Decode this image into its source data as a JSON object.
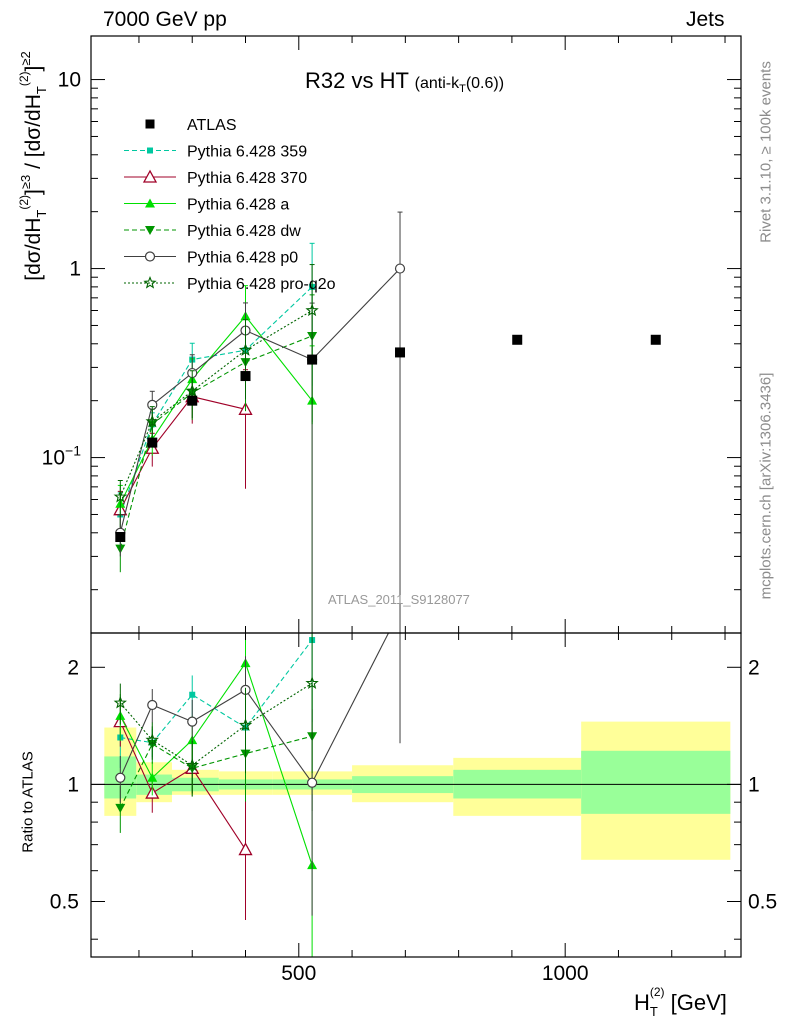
{
  "header": {
    "energy_label": "7000 GeV pp",
    "topic_label": "Jets"
  },
  "plot": {
    "title_main": "R32 vs HT",
    "title_sub": "(anti-k",
    "title_sub_index": "T",
    "title_sub_tail": "(0.6))",
    "analysis_id": "ATLAS_2011_S9128077",
    "side_label_top": "Rivet 3.1.10, ≥ 100k events",
    "side_label_bottom": "mcplots.cern.ch [arXiv:1306.3436]",
    "ylabel_main": "[dσ/dH_T^(2)]^≥3 / [dσ/dH_T^(2)]^≥2",
    "ylabel_ratio": "Ratio to ATLAS",
    "xlabel": "H_T^(2) [GeV]",
    "ytick_main": [
      "10",
      "1",
      "10⁻¹"
    ],
    "ytick_ratio": [
      "2",
      "1",
      "0.5"
    ],
    "xtick": [
      "500",
      "1000"
    ]
  },
  "chart_data": {
    "type": "line",
    "title": "R32 vs HT (anti-kT(0.6))",
    "xlabel": "H_T^(2) [GeV]",
    "ylabel": "[dσ/dH_T^(2)]^≥3 / [dσ/dH_T^(2)]^≥2",
    "xlim": [
      110,
      1330
    ],
    "ylim": [
      0.0118,
      17
    ],
    "yscale": "log",
    "ratio_ylim": [
      0.36,
      2.45
    ],
    "ratio_yscale": "log",
    "legend_position": "top-left",
    "grid": false,
    "data": {
      "name": "ATLAS",
      "x": [
        165,
        225,
        300,
        400,
        525,
        690,
        910,
        1170
      ],
      "xerr_low": [
        135,
        195,
        262,
        350,
        450,
        600,
        790,
        1030
      ],
      "xerr_high": [
        195,
        262,
        350,
        450,
        600,
        790,
        1030,
        1310
      ],
      "y": [
        0.038,
        0.12,
        0.2,
        0.27,
        0.33,
        0.36,
        0.42,
        0.42
      ],
      "band_stat_rel": [
        [
          0.92,
          1.18
        ],
        [
          0.94,
          1.06
        ],
        [
          0.96,
          1.04
        ],
        [
          0.97,
          1.03
        ],
        [
          0.97,
          1.03
        ],
        [
          0.95,
          1.05
        ],
        [
          0.92,
          1.09
        ],
        [
          0.84,
          1.22
        ]
      ],
      "band_total_rel": [
        [
          0.83,
          1.4
        ],
        [
          0.9,
          1.14
        ],
        [
          0.94,
          1.09
        ],
        [
          0.94,
          1.08
        ],
        [
          0.94,
          1.08
        ],
        [
          0.9,
          1.12
        ],
        [
          0.83,
          1.17
        ],
        [
          0.64,
          1.45
        ]
      ]
    },
    "series": [
      {
        "name": "Pythia 6.428 359",
        "color": "#00c8a0",
        "line": "dashed",
        "marker": "square-small",
        "x": [
          165,
          225,
          300,
          400,
          525
        ],
        "y": [
          0.05,
          0.15,
          0.33,
          0.37,
          0.8
        ],
        "yerr_rel": [
          0.3,
          0.15,
          0.22,
          0.3,
          0.7
        ]
      },
      {
        "name": "Pythia 6.428 370",
        "color": "#a00028",
        "line": "solid",
        "marker": "triangle-open",
        "x": [
          165,
          225,
          300,
          400
        ],
        "y": [
          0.053,
          0.112,
          0.21,
          0.18
        ],
        "yerr_rel": [
          0.25,
          0.2,
          0.28,
          0.62
        ]
      },
      {
        "name": "Pythia 6.428 a",
        "color": "#00e000",
        "line": "solid",
        "marker": "triangle-filled",
        "x": [
          165,
          225,
          300,
          400,
          525
        ],
        "y": [
          0.057,
          0.125,
          0.26,
          0.56,
          0.2
        ],
        "yerr_rel": [
          0.25,
          0.18,
          0.28,
          0.45,
          0.95
        ]
      },
      {
        "name": "Pythia 6.428 dw",
        "color": "#009600",
        "line": "dashed",
        "marker": "triangle-down",
        "x": [
          165,
          225,
          300,
          400,
          525
        ],
        "y": [
          0.033,
          0.15,
          0.22,
          0.32,
          0.44
        ],
        "yerr_rel": [
          0.25,
          0.2,
          0.28,
          0.45,
          0.65
        ]
      },
      {
        "name": "Pythia 6.428 p0",
        "color": "#404040",
        "line": "solid",
        "marker": "circle-open",
        "x": [
          165,
          225,
          300,
          400,
          525,
          690
        ],
        "y": [
          0.04,
          0.19,
          0.28,
          0.47,
          0.33,
          1.0
        ],
        "yerr_rel": [
          0.25,
          0.18,
          0.25,
          0.4,
          0.99,
          0.99
        ]
      },
      {
        "name": "Pythia 6.428 pro-q2o",
        "color": "#006400",
        "line": "dotted",
        "marker": "star",
        "x": [
          165,
          225,
          300,
          400,
          525
        ],
        "y": [
          0.062,
          0.155,
          0.225,
          0.37,
          0.6
        ],
        "yerr_rel": [
          0.22,
          0.2,
          0.28,
          0.45,
          0.75
        ]
      }
    ],
    "ratio": {
      "Pythia 6.428 359": [
        1.32,
        1.28,
        1.7,
        1.4,
        2.35
      ],
      "Pythia 6.428 370": [
        1.45,
        0.95,
        1.1,
        0.68
      ],
      "Pythia 6.428 a": [
        1.5,
        1.04,
        1.3,
        2.05,
        0.62
      ],
      "Pythia 6.428 dw": [
        0.87,
        1.27,
        1.1,
        1.2,
        1.33
      ],
      "Pythia 6.428 p0": [
        1.04,
        1.6,
        1.45,
        1.75,
        1.01,
        2.8
      ],
      "Pythia 6.428 pro-q2o": [
        1.62,
        1.3,
        1.12,
        1.42,
        1.82
      ]
    }
  }
}
